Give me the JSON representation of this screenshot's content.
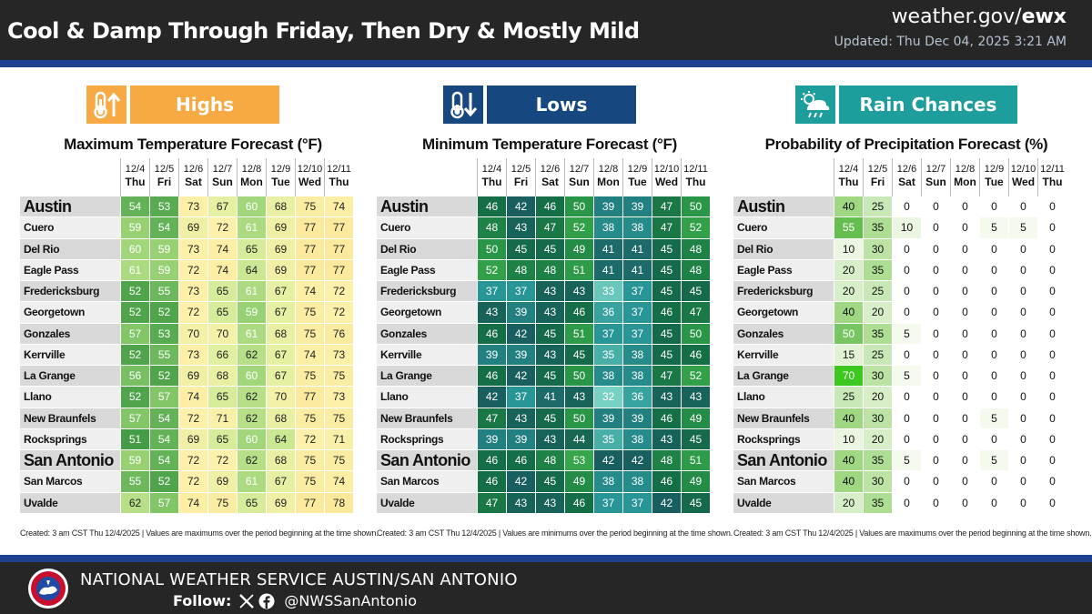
{
  "header": {
    "title": "Cool & Damp Through Friday, Then Dry & Mostly Mild",
    "site_prefix": "weather.gov/",
    "site_office": "ewx",
    "updated": "Updated: Thu Dec 04, 2025 3:21 AM"
  },
  "colors": {
    "highs": "#f7a944",
    "lows": "#17477f",
    "rain": "#1d9d9b"
  },
  "days": [
    {
      "date": "12/4",
      "dow": "Thu"
    },
    {
      "date": "12/5",
      "dow": "Fri"
    },
    {
      "date": "12/6",
      "dow": "Sat"
    },
    {
      "date": "12/7",
      "dow": "Sun"
    },
    {
      "date": "12/8",
      "dow": "Mon"
    },
    {
      "date": "12/9",
      "dow": "Tue"
    },
    {
      "date": "12/10",
      "dow": "Wed"
    },
    {
      "date": "12/11",
      "dow": "Thu"
    }
  ],
  "panels": [
    {
      "id": "highs",
      "badge": "Highs",
      "icon": "thermometer-up-icon",
      "title": "Maximum Temperature Forecast (°F)",
      "footer": "Created: 3 am CST Thu 12/4/2025 | Values are maximums over the period beginning at the time shown.",
      "rows": [
        {
          "city": "Austin",
          "big": true,
          "values": [
            54,
            53,
            73,
            67,
            60,
            68,
            75,
            74
          ]
        },
        {
          "city": "Cuero",
          "values": [
            59,
            54,
            69,
            72,
            61,
            69,
            77,
            77
          ]
        },
        {
          "city": "Del Rio",
          "values": [
            60,
            59,
            73,
            74,
            65,
            69,
            77,
            77
          ]
        },
        {
          "city": "Eagle Pass",
          "values": [
            61,
            59,
            72,
            74,
            64,
            69,
            77,
            77
          ]
        },
        {
          "city": "Fredericksburg",
          "values": [
            52,
            55,
            73,
            65,
            61,
            67,
            74,
            72
          ]
        },
        {
          "city": "Georgetown",
          "values": [
            52,
            52,
            72,
            65,
            59,
            67,
            75,
            72
          ]
        },
        {
          "city": "Gonzales",
          "values": [
            57,
            53,
            70,
            70,
            61,
            68,
            75,
            76
          ]
        },
        {
          "city": "Kerrville",
          "values": [
            52,
            55,
            73,
            66,
            62,
            67,
            74,
            73
          ]
        },
        {
          "city": "La Grange",
          "values": [
            56,
            52,
            69,
            68,
            60,
            67,
            75,
            75
          ]
        },
        {
          "city": "Llano",
          "values": [
            52,
            57,
            74,
            65,
            62,
            70,
            77,
            73
          ]
        },
        {
          "city": "New Braunfels",
          "values": [
            57,
            54,
            72,
            71,
            62,
            68,
            75,
            75
          ]
        },
        {
          "city": "Rocksprings",
          "values": [
            51,
            54,
            69,
            65,
            60,
            64,
            72,
            71
          ]
        },
        {
          "city": "San Antonio",
          "big": true,
          "values": [
            59,
            54,
            72,
            72,
            62,
            68,
            75,
            75
          ]
        },
        {
          "city": "San Marcos",
          "values": [
            55,
            52,
            72,
            69,
            61,
            67,
            75,
            74
          ]
        },
        {
          "city": "Uvalde",
          "values": [
            62,
            57,
            74,
            75,
            65,
            69,
            77,
            78
          ]
        }
      ]
    },
    {
      "id": "lows",
      "badge": "Lows",
      "icon": "thermometer-down-icon",
      "title": "Minimum Temperature Forecast (°F)",
      "footer": "Created: 3 am CST Thu 12/4/2025 | Values are minimums over the period beginning at the time shown.",
      "rows": [
        {
          "city": "Austin",
          "big": true,
          "values": [
            46,
            42,
            46,
            50,
            39,
            39,
            47,
            50
          ]
        },
        {
          "city": "Cuero",
          "values": [
            48,
            43,
            47,
            52,
            38,
            38,
            47,
            52
          ]
        },
        {
          "city": "Del Rio",
          "values": [
            50,
            45,
            45,
            49,
            41,
            41,
            45,
            48
          ]
        },
        {
          "city": "Eagle Pass",
          "values": [
            52,
            48,
            48,
            51,
            41,
            41,
            45,
            48
          ]
        },
        {
          "city": "Fredericksburg",
          "values": [
            37,
            37,
            43,
            43,
            33,
            37,
            45,
            45
          ]
        },
        {
          "city": "Georgetown",
          "values": [
            43,
            39,
            43,
            46,
            36,
            37,
            46,
            47
          ]
        },
        {
          "city": "Gonzales",
          "values": [
            46,
            42,
            45,
            51,
            37,
            37,
            45,
            50
          ]
        },
        {
          "city": "Kerrville",
          "values": [
            39,
            39,
            43,
            45,
            35,
            38,
            45,
            46
          ]
        },
        {
          "city": "La Grange",
          "values": [
            46,
            42,
            45,
            50,
            38,
            38,
            47,
            52
          ]
        },
        {
          "city": "Llano",
          "values": [
            42,
            37,
            41,
            43,
            32,
            36,
            43,
            43
          ]
        },
        {
          "city": "New Braunfels",
          "values": [
            47,
            43,
            45,
            50,
            39,
            39,
            46,
            49
          ]
        },
        {
          "city": "Rocksprings",
          "values": [
            39,
            39,
            43,
            44,
            35,
            38,
            43,
            45
          ]
        },
        {
          "city": "San Antonio",
          "big": true,
          "values": [
            46,
            46,
            48,
            53,
            42,
            42,
            48,
            51
          ]
        },
        {
          "city": "San Marcos",
          "values": [
            46,
            42,
            45,
            49,
            38,
            38,
            46,
            49
          ]
        },
        {
          "city": "Uvalde",
          "values": [
            47,
            43,
            43,
            46,
            37,
            37,
            42,
            45
          ]
        }
      ]
    },
    {
      "id": "rain",
      "badge": "Rain Chances",
      "icon": "rain-cloud-icon",
      "title": "Probability of Precipitation Forecast (%)",
      "footer": "Created: 3 am CST Thu 12/4/2025 | Values are maximums over the period beginning at the time shown.",
      "rows": [
        {
          "city": "Austin",
          "big": true,
          "values": [
            40,
            25,
            0,
            0,
            0,
            0,
            0,
            0
          ]
        },
        {
          "city": "Cuero",
          "values": [
            55,
            35,
            10,
            0,
            0,
            5,
            5,
            0
          ]
        },
        {
          "city": "Del Rio",
          "values": [
            10,
            30,
            0,
            0,
            0,
            0,
            0,
            0
          ]
        },
        {
          "city": "Eagle Pass",
          "values": [
            20,
            35,
            0,
            0,
            0,
            0,
            0,
            0
          ]
        },
        {
          "city": "Fredericksburg",
          "values": [
            20,
            25,
            0,
            0,
            0,
            0,
            0,
            0
          ]
        },
        {
          "city": "Georgetown",
          "values": [
            40,
            20,
            0,
            0,
            0,
            0,
            0,
            0
          ]
        },
        {
          "city": "Gonzales",
          "values": [
            50,
            35,
            5,
            0,
            0,
            0,
            0,
            0
          ]
        },
        {
          "city": "Kerrville",
          "values": [
            15,
            25,
            0,
            0,
            0,
            0,
            0,
            0
          ]
        },
        {
          "city": "La Grange",
          "values": [
            70,
            30,
            5,
            0,
            0,
            0,
            0,
            0
          ]
        },
        {
          "city": "Llano",
          "values": [
            25,
            20,
            0,
            0,
            0,
            0,
            0,
            0
          ]
        },
        {
          "city": "New Braunfels",
          "values": [
            40,
            30,
            0,
            0,
            0,
            5,
            0,
            0
          ]
        },
        {
          "city": "Rocksprings",
          "values": [
            10,
            20,
            0,
            0,
            0,
            0,
            0,
            0
          ]
        },
        {
          "city": "San Antonio",
          "big": true,
          "values": [
            40,
            35,
            5,
            0,
            0,
            5,
            0,
            0
          ]
        },
        {
          "city": "San Marcos",
          "values": [
            40,
            30,
            0,
            0,
            0,
            0,
            0,
            0
          ]
        },
        {
          "city": "Uvalde",
          "values": [
            20,
            35,
            0,
            0,
            0,
            0,
            0,
            0
          ]
        }
      ]
    }
  ],
  "footer": {
    "office": "NATIONAL WEATHER SERVICE AUSTIN/SAN ANTONIO",
    "follow_label": "Follow:",
    "handle": "@NWSSanAntonio",
    "logo_text": "NATIONAL WEATHER SERVICE"
  }
}
